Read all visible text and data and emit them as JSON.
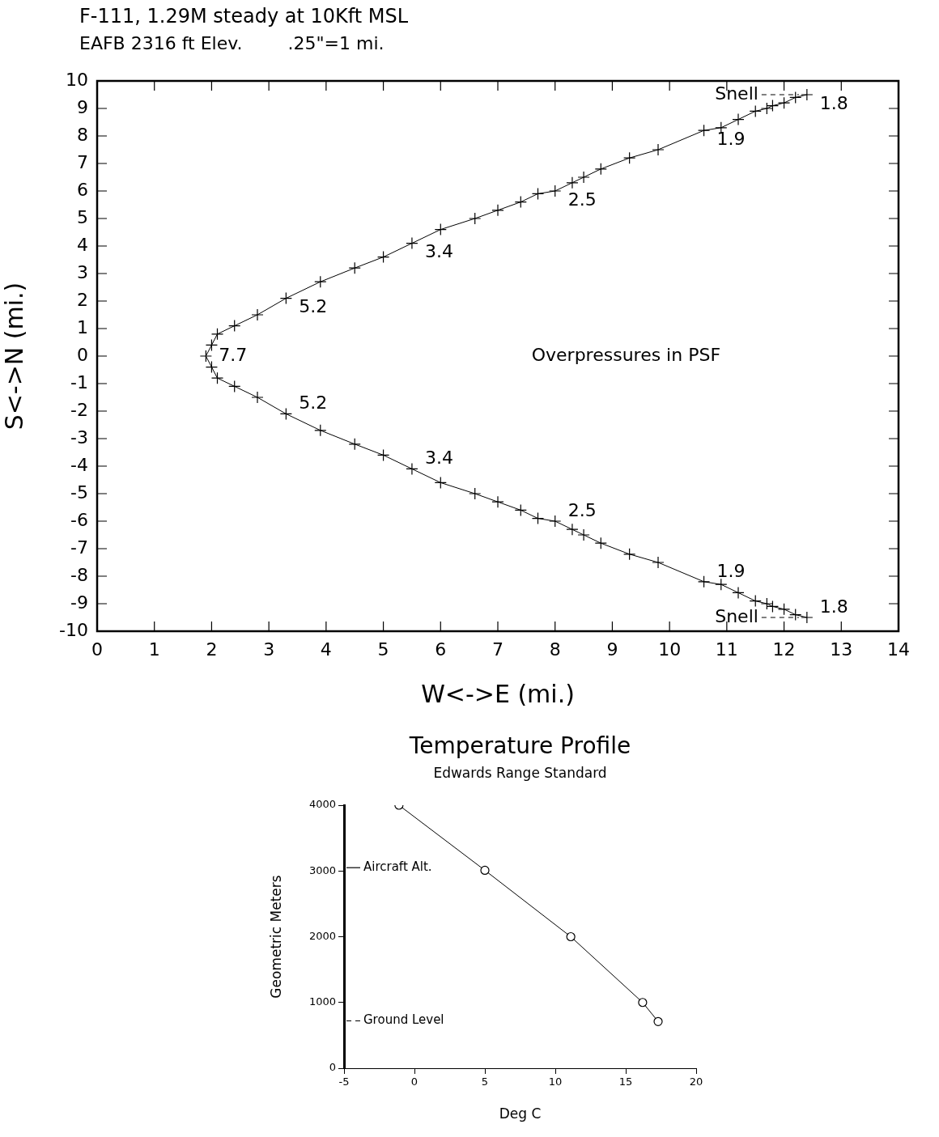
{
  "chart_data": [
    {
      "type": "line",
      "title": "F-111, 1.29M steady at 10Kft MSL",
      "subtitle": "EAFB 2316 ft Elev.        .25\"=1 mi.",
      "xlabel": "W<->E (mi.)",
      "ylabel": "S<->N (mi.)",
      "x": [
        12.4,
        12.2,
        12.0,
        11.8,
        11.7,
        11.5,
        11.2,
        10.9,
        10.6,
        9.8,
        9.3,
        8.8,
        8.5,
        8.3,
        8.0,
        7.7,
        7.4,
        7.0,
        6.6,
        6.0,
        5.5,
        5.0,
        4.5,
        3.9,
        3.3,
        2.8,
        2.4,
        2.1,
        2.0,
        1.9,
        2.0,
        2.1,
        2.4,
        2.8,
        3.3,
        3.9,
        4.5,
        5.0,
        5.5,
        6.0,
        6.6,
        7.0,
        7.4,
        7.7,
        8.0,
        8.3,
        8.5,
        8.8,
        9.3,
        9.8,
        10.6,
        10.9,
        11.2,
        11.5,
        11.7,
        11.8,
        12.0,
        12.2,
        12.4
      ],
      "values": [
        9.5,
        9.4,
        9.2,
        9.1,
        9.0,
        8.9,
        8.6,
        8.3,
        8.2,
        7.5,
        7.2,
        6.8,
        6.5,
        6.3,
        6.0,
        5.9,
        5.6,
        5.3,
        5.0,
        4.6,
        4.1,
        3.6,
        3.2,
        2.7,
        2.1,
        1.5,
        1.1,
        0.8,
        0.4,
        0,
        -0.4,
        -0.8,
        -1.1,
        -1.5,
        -2.1,
        -2.7,
        -3.2,
        -3.6,
        -4.1,
        -4.6,
        -5.0,
        -5.3,
        -5.6,
        -5.9,
        -6.0,
        -6.3,
        -6.5,
        -6.8,
        -7.2,
        -7.5,
        -8.2,
        -8.3,
        -8.6,
        -8.9,
        -9.0,
        -9.1,
        -9.2,
        -9.4,
        -9.5
      ],
      "color": "#000000",
      "marker": "cross",
      "xlim": [
        0,
        14
      ],
      "xticks": [
        0,
        1,
        2,
        3,
        4,
        5,
        6,
        7,
        8,
        9,
        10,
        11,
        12,
        13,
        14
      ],
      "ylim": [
        -10,
        10
      ],
      "yticks": [
        -10,
        -9,
        -8,
        -7,
        -6,
        -5,
        -4,
        -3,
        -2,
        -1,
        0,
        1,
        2,
        3,
        4,
        5,
        6,
        7,
        8,
        9,
        10
      ],
      "annotations": [
        "Overpressures in PSF",
        {
          "text": "7.7",
          "x": 1.9,
          "y": 0
        },
        {
          "text": "5.2",
          "x": 3.3,
          "y": 2.1
        },
        {
          "text": "5.2",
          "x": 3.3,
          "y": -2.1
        },
        {
          "text": "3.4",
          "x": 5.5,
          "y": 4.1
        },
        {
          "text": "3.4",
          "x": 5.5,
          "y": -4.1
        },
        {
          "text": "2.5",
          "x": 8.0,
          "y": 6.0
        },
        {
          "text": "2.5",
          "x": 8.0,
          "y": -6.0
        },
        {
          "text": "1.9",
          "x": 10.6,
          "y": 8.2
        },
        {
          "text": "1.9",
          "x": 10.6,
          "y": -8.2
        },
        {
          "text": "Snell",
          "x": 12.4,
          "y": 9.5
        },
        {
          "text": "1.8",
          "x": 12.4,
          "y": 9.5
        },
        {
          "text": "Snell",
          "x": 12.4,
          "y": -9.5
        },
        {
          "text": "1.8",
          "x": 12.4,
          "y": -9.5
        }
      ]
    },
    {
      "type": "line",
      "title": "Temperature Profile",
      "subtitle": "Edwards Range Standard",
      "xlabel": "Deg C",
      "ylabel": "Geometric Meters",
      "x": [
        -1.1,
        5.0,
        11.1,
        16.2,
        17.3
      ],
      "values": [
        4000,
        3010,
        2000,
        1000,
        710
      ],
      "color": "#000000",
      "marker": "circle",
      "xlim": [
        -5,
        20
      ],
      "xticks": [
        -5,
        0,
        5,
        10,
        15,
        20
      ],
      "ylim": [
        0,
        4000
      ],
      "yticks": [
        0,
        1000,
        2000,
        3000,
        4000
      ],
      "ref_lines": [
        {
          "axis": "y",
          "value": 3050,
          "label": "Aircraft Alt."
        },
        {
          "axis": "y",
          "value": 720,
          "label": "Ground Level",
          "line_style": "dashed"
        }
      ]
    }
  ]
}
